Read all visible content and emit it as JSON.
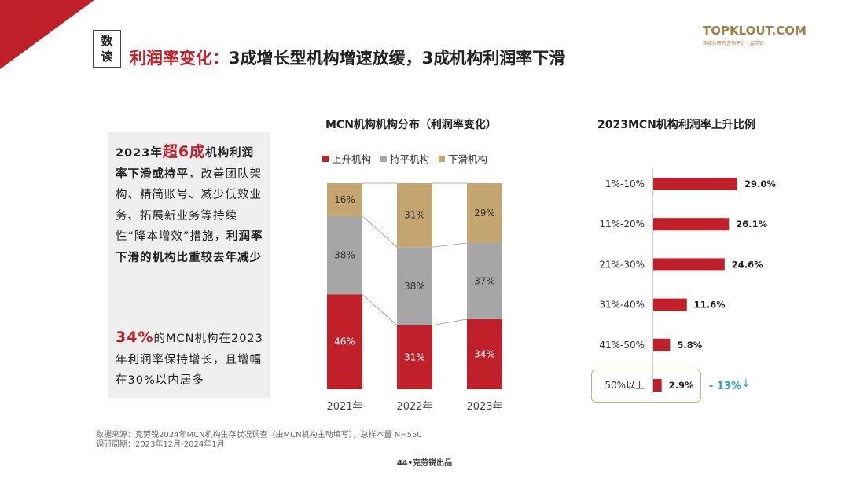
{
  "header": {
    "tag": [
      "数",
      "读"
    ],
    "headline_red": "利润率变化：",
    "headline_rest": "3成增长型机构增速放缓，3成机构利润率下滑"
  },
  "logo": {
    "main": "TOPKLOUT.COM",
    "sub": "新媒体研究咨询平台 · 克劳锐"
  },
  "left_panel": {
    "p1": {
      "a": "2023年",
      "b": "超6成",
      "c": "机构利润率下滑或持平",
      "d": "，改善团队架构、精简账号、减少低效业务、拓展新业务等持续性“降本增效”措施，",
      "e": "利润率下滑的机构比重较去年减少"
    },
    "p2": {
      "a": "34%",
      "b": "的MCN机构在2023年利润率保持增长，且增幅在30%以内居多"
    }
  },
  "colors": {
    "rise": "#c0202a",
    "flat": "#a6a6a6",
    "fall": "#c6a670",
    "accent": "#2aa3c7"
  },
  "chart_data": [
    {
      "type": "bar",
      "stacked": true,
      "title": "MCN机构机构分布（利润率变化）",
      "categories": [
        "2021年",
        "2022年",
        "2023年"
      ],
      "series": [
        {
          "name": "上升机构",
          "values": [
            46,
            31,
            34
          ],
          "labels": [
            "46%",
            "31%",
            "34%"
          ]
        },
        {
          "name": "持平机构",
          "values": [
            38,
            38,
            37
          ],
          "labels": [
            "38%",
            "38%",
            "37%"
          ]
        },
        {
          "name": "下滑机构",
          "values": [
            16,
            31,
            29
          ],
          "labels": [
            "16%",
            "31%",
            "29%"
          ]
        }
      ],
      "legend": "top",
      "ylim": [
        0,
        100
      ]
    },
    {
      "type": "bar",
      "orientation": "horizontal",
      "title": "2023MCN机构利润率上升比例",
      "categories": [
        "1%-10%",
        "11%-20%",
        "21%-30%",
        "31%-40%",
        "41%-50%",
        "50%以上"
      ],
      "values": [
        29.0,
        26.1,
        24.6,
        11.6,
        5.8,
        2.9
      ],
      "labels": [
        "29.0%",
        "26.1%",
        "24.6%",
        "11.6%",
        "5.8%",
        "2.9%"
      ],
      "annotation": "- 13%"
    }
  ],
  "source": {
    "line1": "数据来源：克劳锐2024年MCN机构生存状况调查（由MCN机构主动填写），总样本量 N=550",
    "line2": "调研周期：2023年12月-2024年1月"
  },
  "footer": "44•克劳锐出品"
}
